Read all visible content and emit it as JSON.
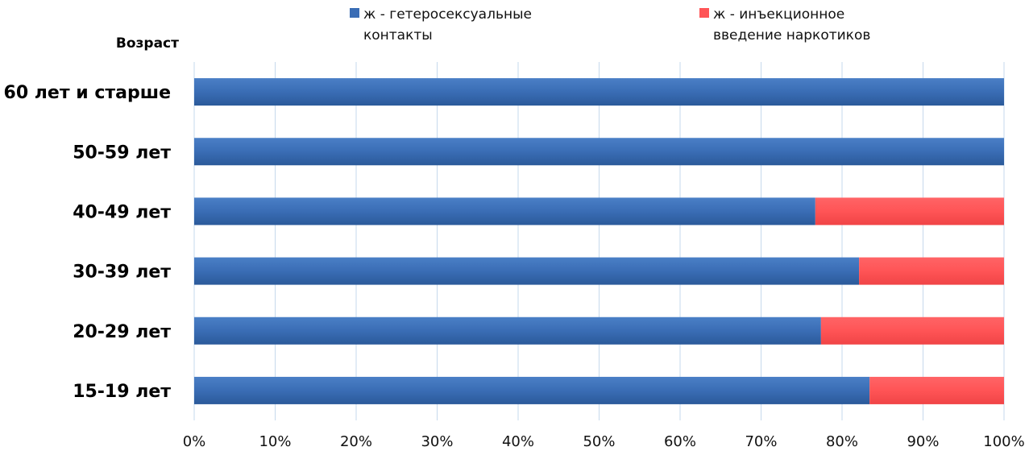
{
  "chart_data": {
    "type": "bar",
    "orientation": "horizontal",
    "stacked": "percent",
    "ylabel": "Возраст",
    "categories": [
      "60 лет и старше",
      "50-59 лет",
      "40-49 лет",
      "30-39 лет",
      "20-29 лет",
      "15-19 лет"
    ],
    "series": [
      {
        "name": "ж - гетеросексуальные контакты",
        "name_lines": [
          "ж - гетеросексуальные",
          "контакты"
        ],
        "color": "#3a6db5",
        "values": [
          100,
          100,
          76.7,
          82.1,
          77.4,
          83.4
        ]
      },
      {
        "name": "ж - инъекционное введение наркотиков",
        "name_lines": [
          "ж - инъекционное",
          "введение наркотиков"
        ],
        "color": "#ff5456",
        "values": [
          0,
          0,
          23.3,
          17.9,
          22.6,
          16.6
        ]
      }
    ],
    "xlim": [
      0,
      100
    ],
    "xticks": [
      "0%",
      "10%",
      "20%",
      "30%",
      "40%",
      "50%",
      "60%",
      "70%",
      "80%",
      "90%",
      "100%"
    ],
    "grid": "vertical",
    "legend": "top"
  }
}
